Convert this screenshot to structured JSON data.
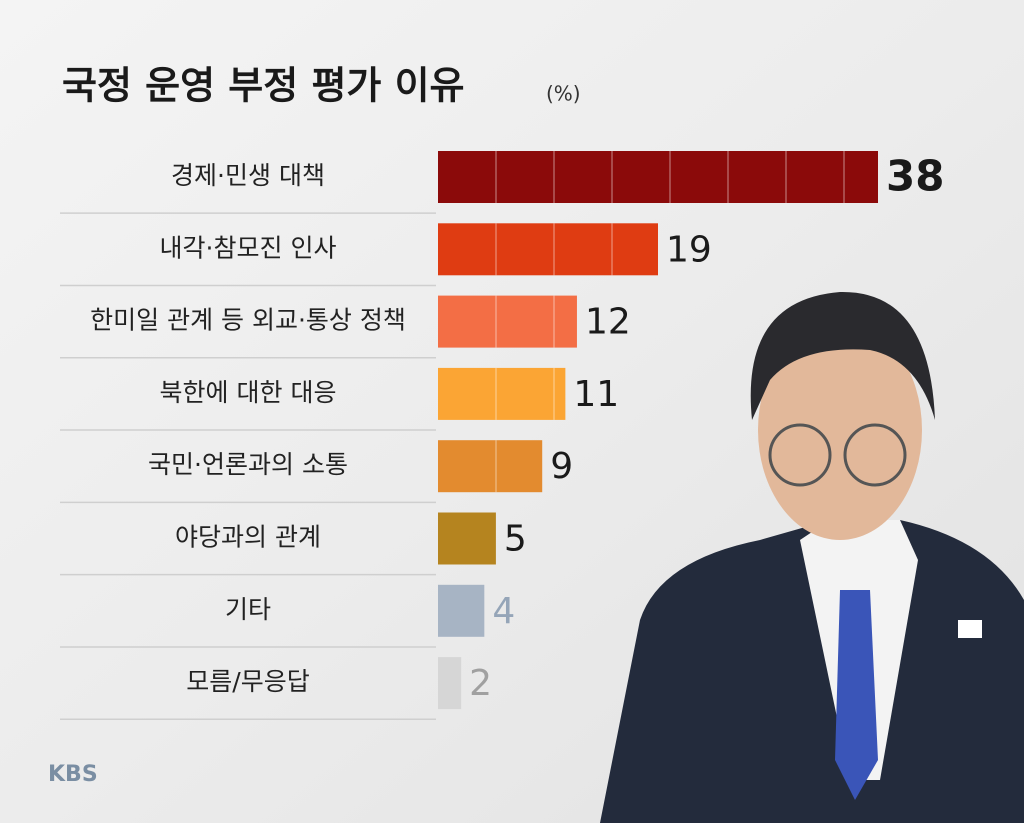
{
  "chart_data": {
    "type": "bar",
    "orientation": "horizontal",
    "title": "국정 운영 부정 평가 이유",
    "unit": "(%)",
    "categories": [
      "경제·민생 대책",
      "내각·참모진 인사",
      "한미일 관계 등 외교·통상 정책",
      "북한에 대한 대응",
      "국민·언론과의 소통",
      "야당과의 관계",
      "기타",
      "모름/무응답"
    ],
    "values": [
      38,
      19,
      12,
      11,
      9,
      5,
      4,
      2
    ],
    "colors": [
      "#8b0a0a",
      "#df3c12",
      "#f36e45",
      "#fba534",
      "#e38b2f",
      "#b5841f",
      "#a7b4c4",
      "#d6d6d6"
    ],
    "value_label_colors": [
      "#1a1a1a",
      "#1a1a1a",
      "#1a1a1a",
      "#1a1a1a",
      "#1a1a1a",
      "#1a1a1a",
      "#95a5b8",
      "#a0a0a0"
    ],
    "logo": "KBS"
  }
}
